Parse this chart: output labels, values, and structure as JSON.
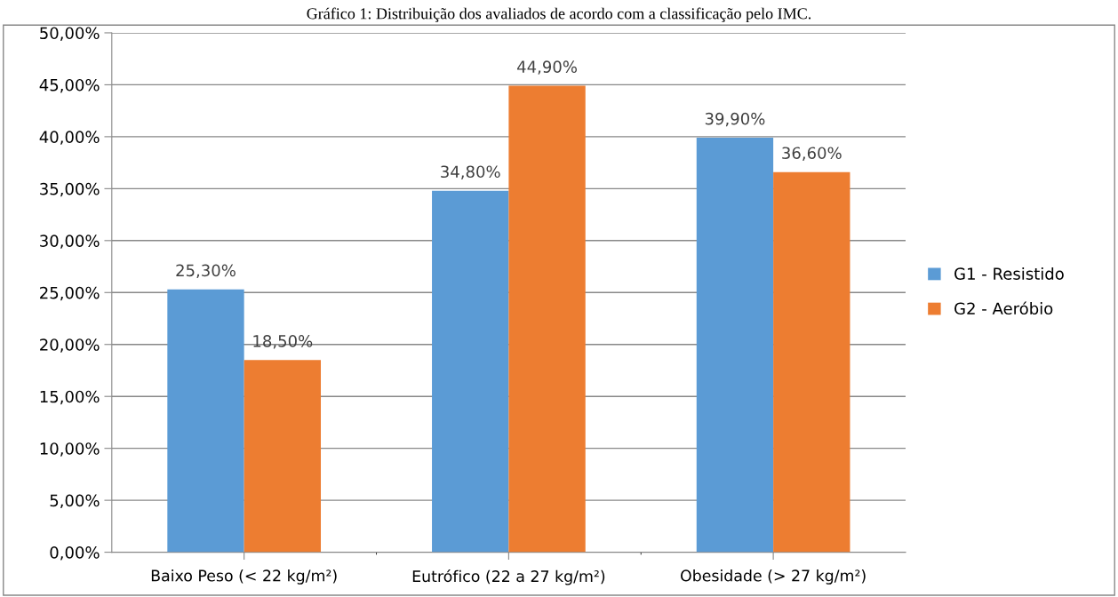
{
  "chart_data": {
    "type": "bar",
    "title": "Gráfico 1: Distribuição dos avaliados de acordo com a classificação pelo IMC.",
    "categories": [
      "Baixo Peso (< 22 kg/m²)",
      "Eutrófico (22 a 27 kg/m²)",
      "Obesidade (> 27 kg/m²)"
    ],
    "series": [
      {
        "name": "G1 - Resistido",
        "color": "#5b9bd5",
        "values": [
          25.3,
          34.8,
          39.9
        ],
        "value_labels": [
          "25,30%",
          "34,80%",
          "39,90%"
        ]
      },
      {
        "name": "G2 - Aeróbio",
        "color": "#ed7d31",
        "values": [
          18.5,
          44.9,
          36.6
        ],
        "value_labels": [
          "18,50%",
          "44,90%",
          "36,60%"
        ]
      }
    ],
    "ylim": [
      0,
      50
    ],
    "yticks": [
      {
        "value": 0,
        "label": "0,00%"
      },
      {
        "value": 5,
        "label": "5,00%"
      },
      {
        "value": 10,
        "label": "10,00%"
      },
      {
        "value": 15,
        "label": "15,00%"
      },
      {
        "value": 20,
        "label": "20,00%"
      },
      {
        "value": 25,
        "label": "25,00%"
      },
      {
        "value": 30,
        "label": "30,00%"
      },
      {
        "value": 35,
        "label": "35,00%"
      },
      {
        "value": 40,
        "label": "40,00%"
      },
      {
        "value": 45,
        "label": "45,00%"
      },
      {
        "value": 50,
        "label": "50,00%"
      }
    ],
    "grid": "y",
    "legend": "right"
  }
}
